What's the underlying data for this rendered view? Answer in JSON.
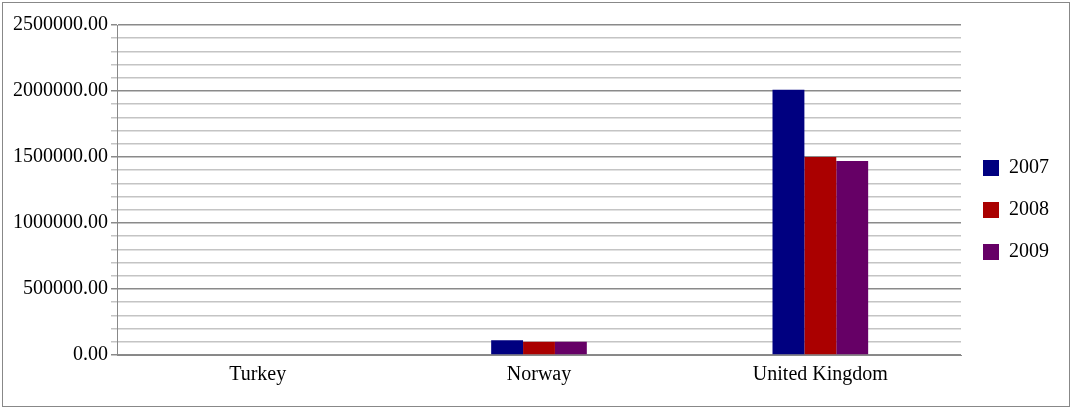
{
  "chart_data": {
    "type": "bar",
    "categories": [
      "Turkey",
      "Norway",
      "United Kingdom"
    ],
    "series": [
      {
        "name": "2007",
        "color": "#000080",
        "values": [
          null,
          112000,
          2010000
        ]
      },
      {
        "name": "2008",
        "color": "#aa0000",
        "values": [
          null,
          100000,
          1500000
        ]
      },
      {
        "name": "2009",
        "color": "#660066",
        "values": [
          null,
          100000,
          1470000
        ]
      }
    ],
    "ylim": [
      0,
      2500000
    ],
    "yticks": [
      {
        "value": 0,
        "label": "0.00"
      },
      {
        "value": 100000,
        "label": null
      },
      {
        "value": 200000,
        "label": null
      },
      {
        "value": 300000,
        "label": null
      },
      {
        "value": 400000,
        "label": null
      },
      {
        "value": 500000,
        "label": "500000.00"
      },
      {
        "value": 600000,
        "label": null
      },
      {
        "value": 700000,
        "label": null
      },
      {
        "value": 800000,
        "label": null
      },
      {
        "value": 900000,
        "label": null
      },
      {
        "value": 1000000,
        "label": "1000000.00"
      },
      {
        "value": 1100000,
        "label": null
      },
      {
        "value": 1200000,
        "label": null
      },
      {
        "value": 1300000,
        "label": null
      },
      {
        "value": 1400000,
        "label": null
      },
      {
        "value": 1500000,
        "label": "1500000.00"
      },
      {
        "value": 1600000,
        "label": null
      },
      {
        "value": 1700000,
        "label": null
      },
      {
        "value": 1800000,
        "label": null
      },
      {
        "value": 1900000,
        "label": null
      },
      {
        "value": 2000000,
        "label": "2000000.00"
      },
      {
        "value": 2100000,
        "label": null
      },
      {
        "value": 2200000,
        "label": null
      },
      {
        "value": 2300000,
        "label": null
      },
      {
        "value": 2400000,
        "label": null
      },
      {
        "value": 2500000,
        "label": "2500000.00"
      }
    ],
    "grid": "y",
    "legend": "right"
  }
}
